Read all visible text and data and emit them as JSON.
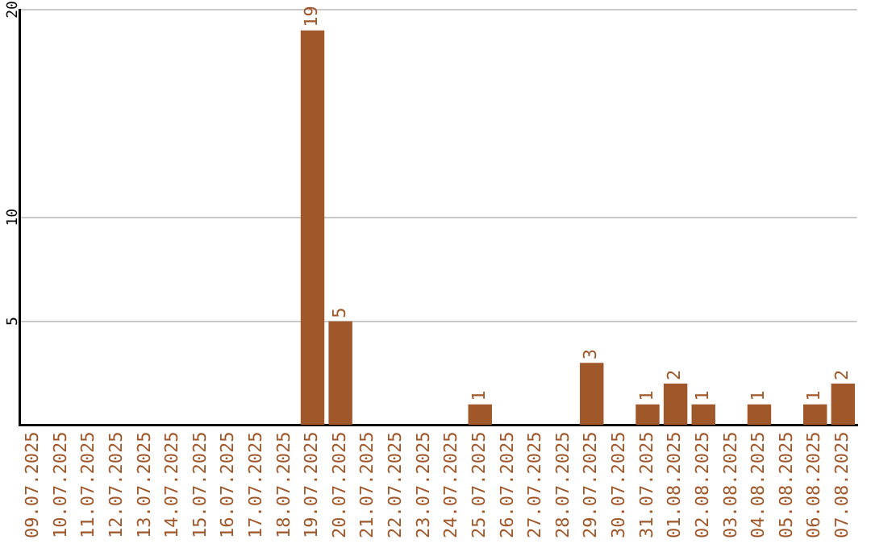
{
  "chart_data": {
    "type": "bar",
    "categories": [
      "09.07.2025",
      "10.07.2025",
      "11.07.2025",
      "12.07.2025",
      "13.07.2025",
      "14.07.2025",
      "15.07.2025",
      "16.07.2025",
      "17.07.2025",
      "18.07.2025",
      "19.07.2025",
      "20.07.2025",
      "21.07.2025",
      "22.07.2025",
      "23.07.2025",
      "24.07.2025",
      "25.07.2025",
      "26.07.2025",
      "27.07.2025",
      "28.07.2025",
      "29.07.2025",
      "30.07.2025",
      "31.07.2025",
      "01.08.2025",
      "02.08.2025",
      "03.08.2025",
      "04.08.2025",
      "05.08.2025",
      "06.08.2025",
      "07.08.2025"
    ],
    "values": [
      0,
      0,
      0,
      0,
      0,
      0,
      0,
      0,
      0,
      0,
      19,
      5,
      0,
      0,
      0,
      0,
      1,
      0,
      0,
      0,
      3,
      0,
      1,
      2,
      1,
      0,
      1,
      0,
      1,
      2
    ],
    "value_labels": [
      null,
      null,
      null,
      null,
      null,
      null,
      null,
      null,
      null,
      null,
      "19",
      "5",
      null,
      null,
      null,
      null,
      "1",
      null,
      null,
      null,
      "3",
      null,
      "1",
      "2",
      "1",
      null,
      "1",
      null,
      "1",
      "2"
    ],
    "color": "#a0572a",
    "ylim": [
      0,
      20
    ],
    "yticks": [
      5,
      10,
      20
    ],
    "grid": "y",
    "legend": false
  }
}
